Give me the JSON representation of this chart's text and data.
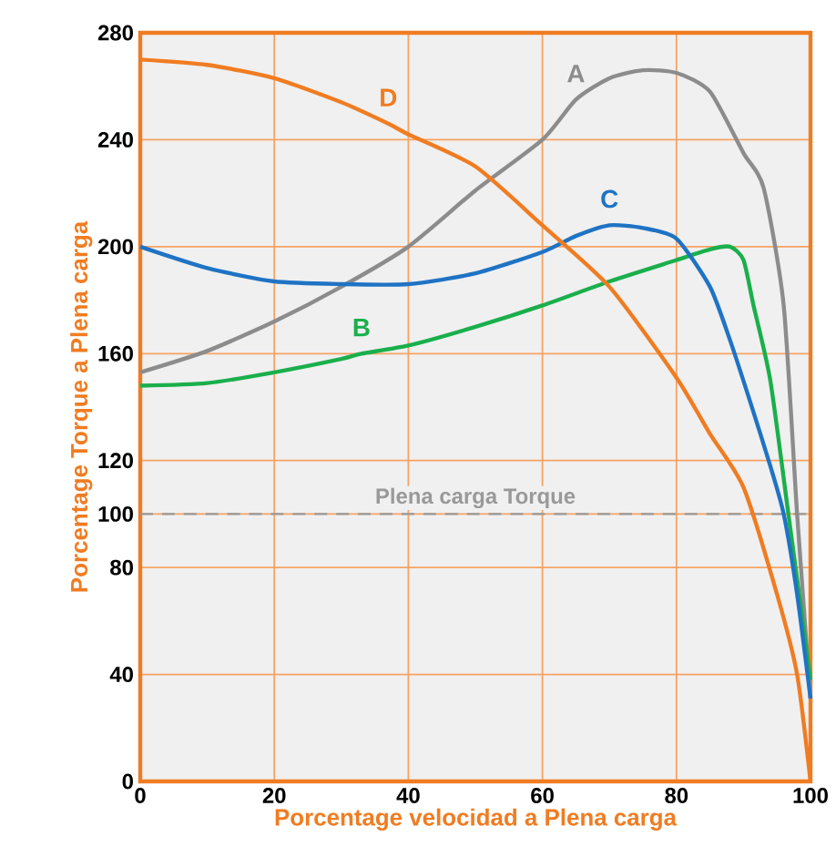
{
  "chart_data": {
    "type": "line",
    "xlabel": "Porcentage velocidad a Plena carga",
    "ylabel": "Porcentage Torque a Plena carga",
    "xlim": [
      0,
      100
    ],
    "ylim": [
      0,
      280
    ],
    "xticks": [
      0,
      20,
      40,
      60,
      80,
      100
    ],
    "yticks": [
      0,
      40,
      80,
      100,
      120,
      160,
      200,
      240,
      280
    ],
    "grid": true,
    "marker": "none",
    "line_style": "solid",
    "series": [
      {
        "color": "#8c8c8c",
        "x": [
          0,
          10,
          20,
          30,
          40,
          50,
          60,
          65,
          70,
          75,
          80,
          85,
          90,
          93,
          96,
          98,
          100
        ],
        "values": [
          153,
          161,
          172,
          185,
          200,
          221,
          240,
          255,
          263,
          266,
          265,
          258,
          235,
          222,
          178,
          100,
          31
        ]
      },
      {
        "color": "#1aaf4c",
        "x": [
          0,
          10,
          20,
          30,
          33,
          40,
          50,
          60,
          70,
          80,
          85,
          88,
          90,
          91.5,
          94,
          96.7,
          100
        ],
        "values": [
          148,
          149,
          153,
          158,
          160,
          163,
          170,
          178,
          187,
          195,
          199,
          200,
          195,
          178,
          150,
          100,
          38
        ]
      },
      {
        "color": "#1f73c4",
        "x": [
          0,
          10,
          20,
          30,
          40,
          50,
          60,
          65,
          70,
          75,
          80,
          85,
          88,
          91,
          94,
          96,
          98,
          100
        ],
        "values": [
          200,
          192,
          187,
          186,
          186,
          190,
          198,
          204,
          208,
          207,
          203,
          185,
          165,
          142,
          118,
          100,
          70,
          31
        ]
      },
      {
        "color": "#f07c22",
        "x": [
          0,
          10,
          20,
          30,
          37,
          40,
          50,
          60,
          70,
          80,
          85,
          90,
          95,
          98,
          100
        ],
        "values": [
          270,
          268,
          263,
          254,
          246,
          242,
          230,
          208,
          185,
          151,
          130,
          110,
          70,
          40,
          0
        ]
      }
    ],
    "annotations": [
      {
        "text": "A",
        "x": 65,
        "y": 255
      },
      {
        "text": "B",
        "x": 33,
        "y": 160
      },
      {
        "text": "C",
        "x": 70,
        "y": 208
      },
      {
        "text": "D",
        "x": 37,
        "y": 246
      }
    ],
    "ref_lines": [
      {
        "axis": "y",
        "value": 100,
        "label": "Plena carga Torque",
        "color": "#999999",
        "line_style": "dashed"
      }
    ]
  }
}
